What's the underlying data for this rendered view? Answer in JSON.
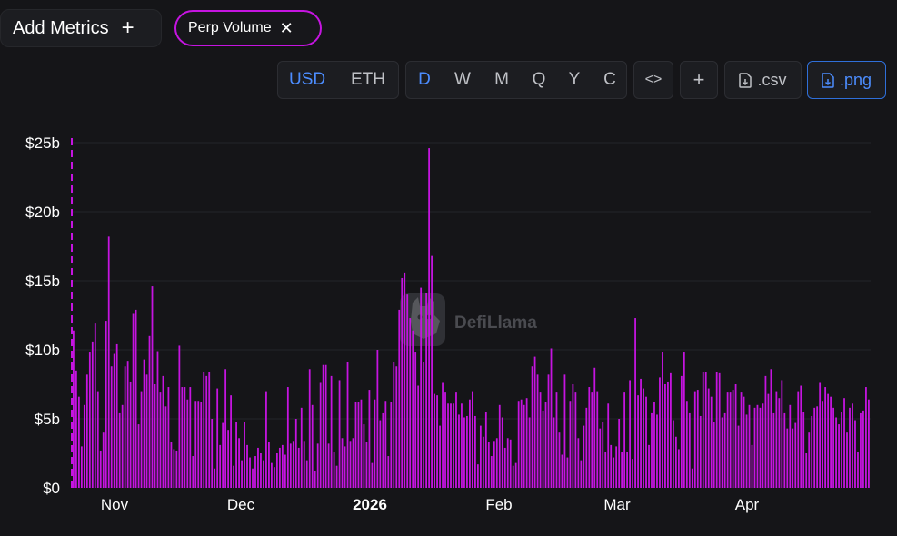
{
  "toolbar": {
    "add_metrics_label": "Add Metrics",
    "add_metrics_icon": "plus-icon",
    "metric_chip_label": "Perp Volume",
    "metric_chip_icon": "close-icon",
    "metric_color": "#c514e0",
    "units": [
      "USD",
      "ETH"
    ],
    "selected_unit": "USD",
    "periods": [
      "D",
      "W",
      "M",
      "Q",
      "Y",
      "C"
    ],
    "selected_period": "D",
    "embed_icon": "code-icon",
    "add_icon": "plus-icon",
    "csv_label": ".csv",
    "csv_icon": "file-download-icon",
    "png_label": ".png",
    "png_icon": "file-download-icon",
    "accent_color": "#4c8dff"
  },
  "watermark": {
    "text": "DefiLlama",
    "icon": "llama-logo-icon"
  },
  "chart_data": {
    "type": "bar",
    "series": [
      {
        "name": "Perp Volume",
        "color": "#c514e0"
      }
    ],
    "ylim": [
      0,
      25
    ],
    "yticks": [
      "$0",
      "$5b",
      "$10b",
      "$15b",
      "$20b",
      "$25b"
    ],
    "y_unit": "billion USD",
    "xticks": [
      {
        "label": "Nov",
        "bold": false
      },
      {
        "label": "Dec",
        "bold": false
      },
      {
        "label": "2026",
        "bold": true
      },
      {
        "label": "Feb",
        "bold": false
      },
      {
        "label": "Mar",
        "bold": false
      },
      {
        "label": "Apr",
        "bold": false
      }
    ],
    "grid": "horizontal",
    "values": [
      11.4,
      8.5,
      6.6,
      3.0,
      6.0,
      8.2,
      9.8,
      10.6,
      11.9,
      7.0,
      2.7,
      4.0,
      12.1,
      18.2,
      8.8,
      9.7,
      10.4,
      5.4,
      6.0,
      8.8,
      9.2,
      7.7,
      12.6,
      12.9,
      4.6,
      7.0,
      9.3,
      8.2,
      11.0,
      14.6,
      7.5,
      9.9,
      6.9,
      8.1,
      5.9,
      7.3,
      3.3,
      2.8,
      2.7,
      10.3,
      7.3,
      7.3,
      6.4,
      7.3,
      2.3,
      6.3,
      6.3,
      6.2,
      8.4,
      8.1,
      8.4,
      5.0,
      1.4,
      7.2,
      3.1,
      4.7,
      8.6,
      4.2,
      6.7,
      1.6,
      4.8,
      3.6,
      2.0,
      4.8,
      3.1,
      2.2,
      1.4,
      2.3,
      2.9,
      2.5,
      2.0,
      7.0,
      3.3,
      1.8,
      1.5,
      2.5,
      2.9,
      3.1,
      2.4,
      7.3,
      3.2,
      3.4,
      5.0,
      2.9,
      5.8,
      3.4,
      2.0,
      8.6,
      6.0,
      1.2,
      3.2,
      7.6,
      8.9,
      8.9,
      3.2,
      8.1,
      2.6,
      1.6,
      7.8,
      3.6,
      3.0,
      9.1,
      3.4,
      3.6,
      6.2,
      6.2,
      6.4,
      4.6,
      3.3,
      7.1,
      1.8,
      6.4,
      10.0,
      4.9,
      5.4,
      6.3,
      2.3,
      6.2,
      9.1,
      8.8,
      12.9,
      15.2,
      15.6,
      14.0,
      12.3,
      11.4,
      9.8,
      7.4,
      14.5,
      9.1,
      14.1,
      24.6,
      16.8,
      6.8,
      6.7,
      4.5,
      7.6,
      6.9,
      6.1,
      6.1,
      6.1,
      6.9,
      5.3,
      6.1,
      5.1,
      5.2,
      6.4,
      7.0,
      5.2,
      1.7,
      4.5,
      3.7,
      5.5,
      3.3,
      2.3,
      3.4,
      3.6,
      6.0,
      5.1,
      2.9,
      3.6,
      3.5,
      1.6,
      1.8,
      6.3,
      6.4,
      6.0,
      6.5,
      5.1,
      8.8,
      9.5,
      8.2,
      6.9,
      5.6,
      6.2,
      8.2,
      10.1,
      5.1,
      6.9,
      4.0,
      2.4,
      8.2,
      2.2,
      6.3,
      7.5,
      6.9,
      3.6,
      2.0,
      4.5,
      5.8,
      7.3,
      6.9,
      8.7,
      7.0,
      4.3,
      4.8,
      2.6,
      6.1,
      3.1,
      2.2,
      3.0,
      5.0,
      2.6,
      6.9,
      2.6,
      7.8,
      2.1,
      12.3,
      6.7,
      7.9,
      7.2,
      6.6,
      3.1,
      5.4,
      6.2,
      5.3,
      8.0,
      9.8,
      7.5,
      7.7,
      8.3,
      4.9,
      3.7,
      2.8,
      8.1,
      9.8,
      6.3,
      5.4,
      1.4,
      7.0,
      7.1,
      5.2,
      8.4,
      8.4,
      7.2,
      6.6,
      4.8,
      8.4,
      8.3,
      5.1,
      5.4,
      6.9,
      6.9,
      7.1,
      7.5,
      4.5,
      6.9,
      6.6,
      5.3,
      6.0,
      3.1,
      5.8,
      6.0,
      5.8,
      6.1,
      8.1,
      6.8,
      8.6,
      5.4,
      7.0,
      6.5,
      7.8,
      5.4,
      4.3,
      6.0,
      4.3,
      4.7,
      7.0,
      7.4,
      5.5,
      2.5,
      4.0,
      5.2,
      5.8,
      5.9,
      7.6,
      6.3,
      7.3,
      6.8,
      6.6,
      5.8,
      5.1,
      4.6,
      5.5,
      6.5,
      4.0,
      5.8,
      6.1,
      4.9,
      2.6,
      5.4,
      5.6,
      7.3,
      6.4
    ]
  }
}
